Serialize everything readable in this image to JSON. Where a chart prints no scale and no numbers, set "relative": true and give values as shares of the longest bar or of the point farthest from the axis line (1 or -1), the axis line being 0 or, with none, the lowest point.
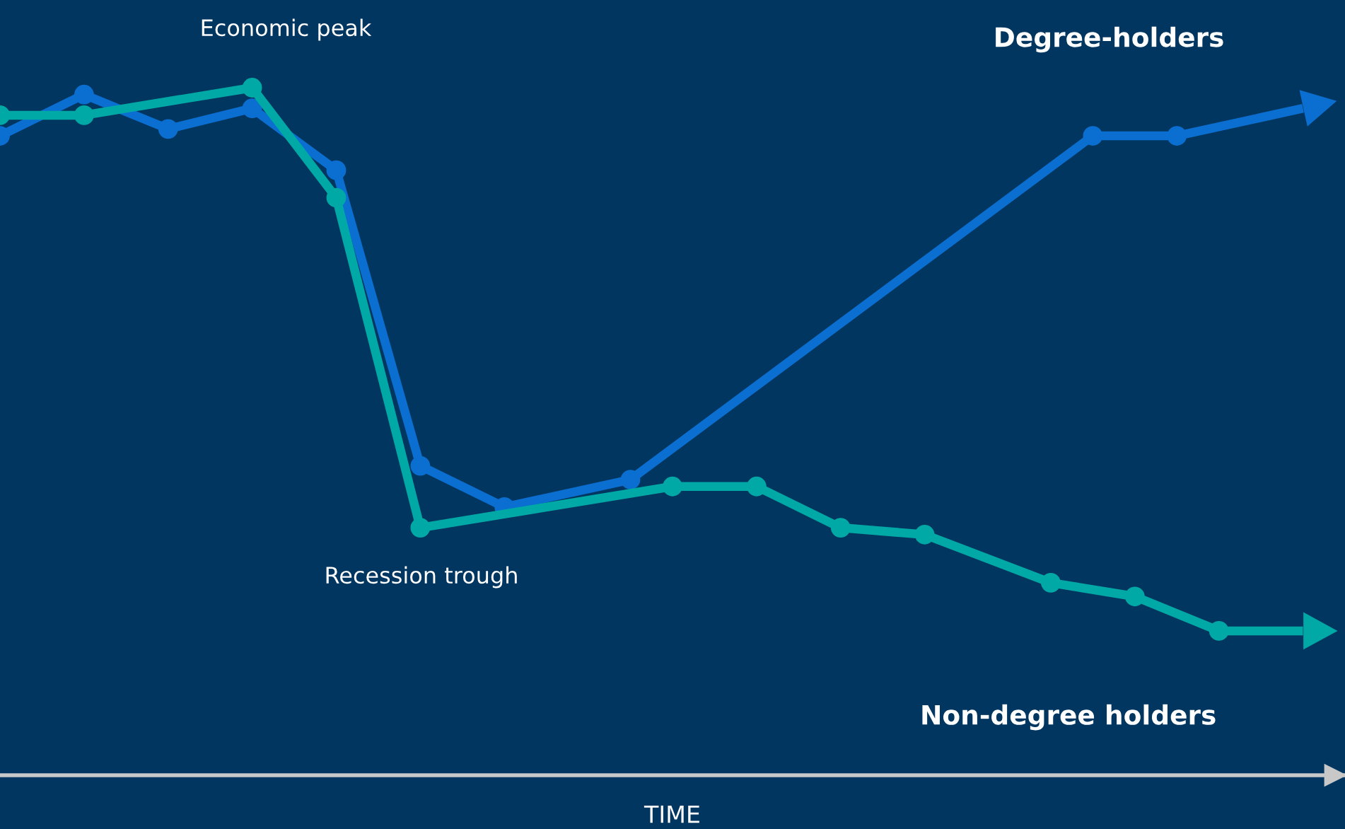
{
  "chart_data": {
    "type": "line",
    "relative": true,
    "xlabel": "TIME",
    "marker": "circle",
    "line_style": "solid",
    "categories": [
      null,
      null,
      null,
      null,
      null,
      null,
      null,
      null,
      null,
      null,
      null,
      null,
      null,
      null,
      null,
      null,
      null,
      null,
      null,
      null,
      null,
      null,
      null,
      null,
      null,
      null,
      null,
      null,
      null,
      null,
      null,
      null,
      null
    ],
    "series": [
      {
        "name": "Degree-holders",
        "color": "#0a6fd0",
        "values": [
          0.93,
          null,
          0.99,
          null,
          0.94,
          null,
          0.97,
          null,
          0.88,
          null,
          0.45,
          null,
          0.39,
          null,
          null,
          0.43,
          null,
          null,
          null,
          null,
          null,
          null,
          null,
          null,
          null,
          null,
          0.93,
          null,
          0.93,
          null,
          null,
          0.97,
          null
        ]
      },
      {
        "name": "Non-degree holders",
        "color": "#00a9a5",
        "values": [
          0.96,
          null,
          0.96,
          null,
          null,
          null,
          1.0,
          null,
          0.84,
          null,
          0.36,
          null,
          null,
          null,
          null,
          null,
          0.42,
          null,
          0.42,
          null,
          0.36,
          null,
          0.35,
          null,
          null,
          0.28,
          null,
          0.26,
          null,
          0.21,
          null,
          0.21,
          null
        ]
      }
    ],
    "annotations": [
      "Economic peak",
      "Recession trough"
    ]
  }
}
